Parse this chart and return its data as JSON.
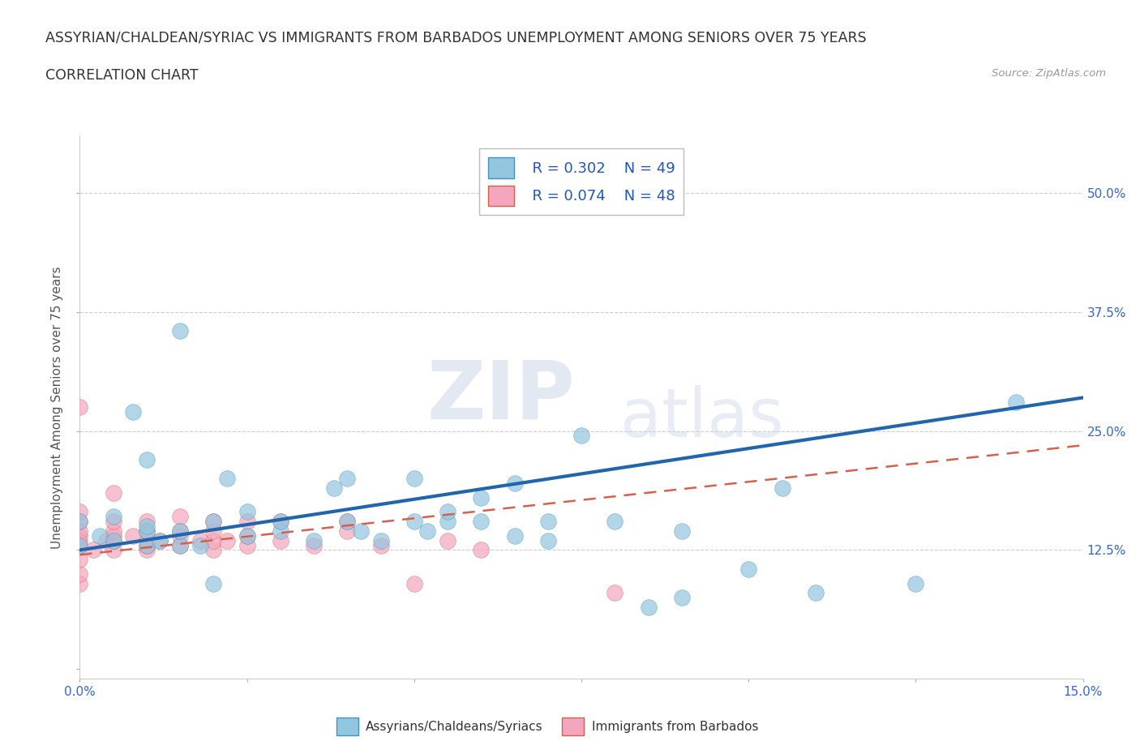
{
  "title_line1": "ASSYRIAN/CHALDEAN/SYRIAC VS IMMIGRANTS FROM BARBADOS UNEMPLOYMENT AMONG SENIORS OVER 75 YEARS",
  "title_line2": "CORRELATION CHART",
  "source_text": "Source: ZipAtlas.com",
  "ylabel": "Unemployment Among Seniors over 75 years",
  "xlim": [
    0.0,
    0.15
  ],
  "ylim": [
    -0.01,
    0.56
  ],
  "xticks": [
    0.0,
    0.025,
    0.05,
    0.075,
    0.1,
    0.125,
    0.15
  ],
  "ytick_positions": [
    0.0,
    0.125,
    0.25,
    0.375,
    0.5
  ],
  "ytick_labels": [
    "",
    "12.5%",
    "25.0%",
    "37.5%",
    "50.0%"
  ],
  "watermark_zip": "ZIP",
  "watermark_atlas": "atlas",
  "legend_r1": "R = 0.302",
  "legend_n1": "N = 49",
  "legend_r2": "R = 0.074",
  "legend_n2": "N = 48",
  "color_blue": "#92c5de",
  "color_pink": "#f4a6be",
  "color_blue_edge": "#4393c3",
  "color_pink_edge": "#d6604d",
  "trendline_blue": "#2166ac",
  "trendline_pink": "#d6604d",
  "blue_scatter_x": [
    0.0,
    0.0,
    0.003,
    0.005,
    0.005,
    0.008,
    0.01,
    0.01,
    0.01,
    0.01,
    0.012,
    0.015,
    0.015,
    0.015,
    0.018,
    0.02,
    0.02,
    0.022,
    0.025,
    0.025,
    0.03,
    0.03,
    0.035,
    0.038,
    0.04,
    0.04,
    0.042,
    0.045,
    0.05,
    0.05,
    0.052,
    0.055,
    0.055,
    0.06,
    0.06,
    0.065,
    0.065,
    0.07,
    0.07,
    0.075,
    0.08,
    0.085,
    0.09,
    0.09,
    0.1,
    0.105,
    0.11,
    0.125,
    0.14
  ],
  "blue_scatter_y": [
    0.13,
    0.155,
    0.14,
    0.135,
    0.16,
    0.27,
    0.13,
    0.145,
    0.15,
    0.22,
    0.135,
    0.13,
    0.145,
    0.355,
    0.13,
    0.09,
    0.155,
    0.2,
    0.14,
    0.165,
    0.145,
    0.155,
    0.135,
    0.19,
    0.155,
    0.2,
    0.145,
    0.135,
    0.155,
    0.2,
    0.145,
    0.155,
    0.165,
    0.155,
    0.18,
    0.14,
    0.195,
    0.135,
    0.155,
    0.245,
    0.155,
    0.065,
    0.075,
    0.145,
    0.105,
    0.19,
    0.08,
    0.09,
    0.28
  ],
  "pink_scatter_x": [
    0.0,
    0.0,
    0.0,
    0.0,
    0.0,
    0.0,
    0.0,
    0.0,
    0.0,
    0.0,
    0.002,
    0.004,
    0.005,
    0.005,
    0.005,
    0.005,
    0.005,
    0.005,
    0.008,
    0.01,
    0.01,
    0.01,
    0.01,
    0.01,
    0.012,
    0.015,
    0.015,
    0.015,
    0.015,
    0.018,
    0.02,
    0.02,
    0.02,
    0.02,
    0.022,
    0.025,
    0.025,
    0.025,
    0.03,
    0.03,
    0.035,
    0.04,
    0.04,
    0.045,
    0.05,
    0.055,
    0.06,
    0.08
  ],
  "pink_scatter_y": [
    0.09,
    0.1,
    0.115,
    0.13,
    0.135,
    0.14,
    0.145,
    0.155,
    0.165,
    0.275,
    0.125,
    0.135,
    0.125,
    0.135,
    0.14,
    0.145,
    0.155,
    0.185,
    0.14,
    0.125,
    0.13,
    0.135,
    0.145,
    0.155,
    0.135,
    0.13,
    0.14,
    0.145,
    0.16,
    0.135,
    0.125,
    0.135,
    0.145,
    0.155,
    0.135,
    0.13,
    0.14,
    0.155,
    0.135,
    0.155,
    0.13,
    0.145,
    0.155,
    0.13,
    0.09,
    0.135,
    0.125,
    0.08
  ],
  "blue_trend": [
    0.125,
    0.285
  ],
  "pink_trend": [
    0.12,
    0.235
  ],
  "gridline_y": [
    0.125,
    0.25,
    0.375,
    0.5
  ],
  "background_color": "#ffffff",
  "title_fontsize": 12.5,
  "ylabel_fontsize": 11,
  "tick_fontsize": 11,
  "legend_fontsize": 13
}
